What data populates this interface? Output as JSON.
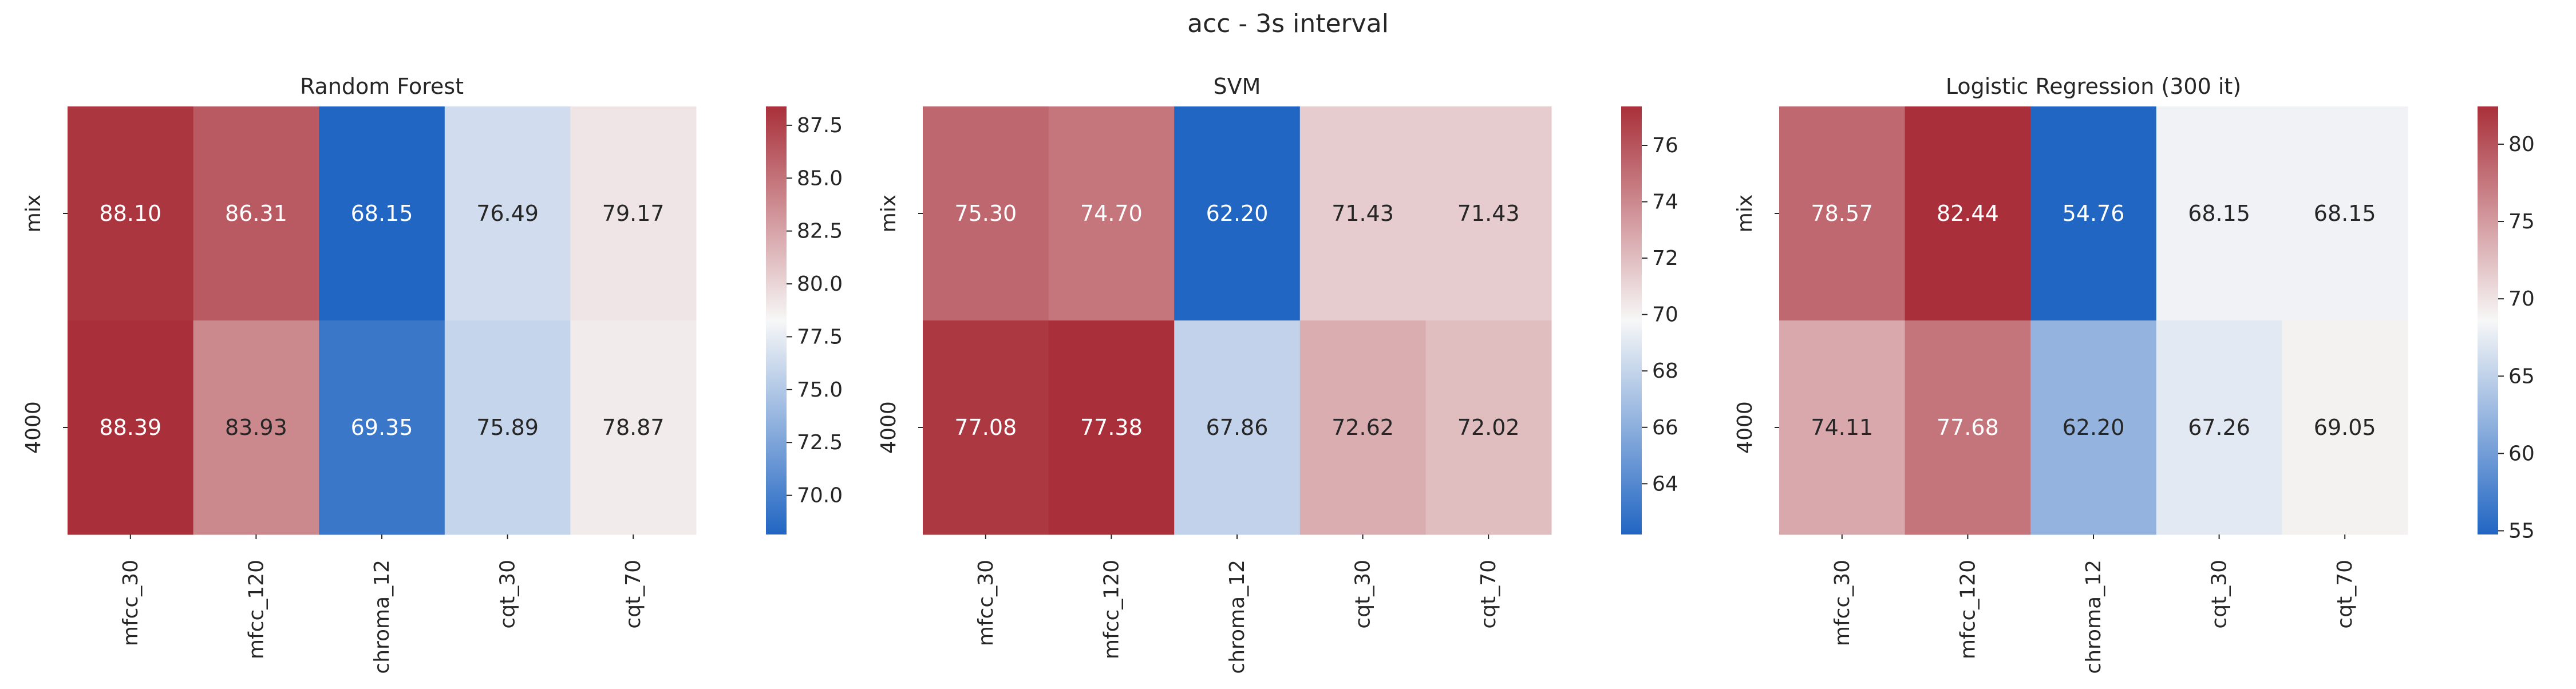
{
  "figure": {
    "title": "acc - 3s interval"
  },
  "chart_data": [
    {
      "type": "heatmap",
      "title": "Random Forest",
      "x_categories": [
        "mfcc_30",
        "mfcc_120",
        "chroma_12",
        "cqt_30",
        "cqt_70"
      ],
      "y_categories": [
        "mix",
        "4000"
      ],
      "values": [
        [
          88.1,
          86.31,
          68.15,
          76.49,
          79.17
        ],
        [
          88.39,
          83.93,
          69.35,
          75.89,
          78.87
        ]
      ],
      "value_labels": [
        [
          "88.10",
          "86.31",
          "68.15",
          "76.49",
          "79.17"
        ],
        [
          "88.39",
          "83.93",
          "69.35",
          "75.89",
          "78.87"
        ]
      ],
      "colorbar_ticks": [
        "70.0",
        "72.5",
        "75.0",
        "77.5",
        "80.0",
        "82.5",
        "85.0",
        "87.5"
      ],
      "colorbar_tick_values": [
        70.0,
        72.5,
        75.0,
        77.5,
        80.0,
        82.5,
        85.0,
        87.5
      ],
      "color_range": [
        68.15,
        88.39
      ],
      "colormap": [
        "#2166c3",
        "#f7f7f7",
        "#a9303a"
      ]
    },
    {
      "type": "heatmap",
      "title": "SVM",
      "x_categories": [
        "mfcc_30",
        "mfcc_120",
        "chroma_12",
        "cqt_30",
        "cqt_70"
      ],
      "y_categories": [
        "mix",
        "4000"
      ],
      "values": [
        [
          75.3,
          74.7,
          62.2,
          71.43,
          71.43
        ],
        [
          77.08,
          77.38,
          67.86,
          72.62,
          72.02
        ]
      ],
      "value_labels": [
        [
          "75.30",
          "74.70",
          "62.20",
          "71.43",
          "71.43"
        ],
        [
          "77.08",
          "77.38",
          "67.86",
          "72.62",
          "72.02"
        ]
      ],
      "colorbar_ticks": [
        "64",
        "66",
        "68",
        "70",
        "72",
        "74",
        "76"
      ],
      "colorbar_tick_values": [
        64,
        66,
        68,
        70,
        72,
        74,
        76
      ],
      "color_range": [
        62.2,
        77.38
      ],
      "colormap": [
        "#2166c3",
        "#f7f7f7",
        "#a9303a"
      ]
    },
    {
      "type": "heatmap",
      "title": "Logistic Regression (300 it)",
      "x_categories": [
        "mfcc_30",
        "mfcc_120",
        "chroma_12",
        "cqt_30",
        "cqt_70"
      ],
      "y_categories": [
        "mix",
        "4000"
      ],
      "values": [
        [
          78.57,
          82.44,
          54.76,
          68.15,
          68.15
        ],
        [
          74.11,
          77.68,
          62.2,
          67.26,
          69.05
        ]
      ],
      "value_labels": [
        [
          "78.57",
          "82.44",
          "54.76",
          "68.15",
          "68.15"
        ],
        [
          "74.11",
          "77.68",
          "62.20",
          "67.26",
          "69.05"
        ]
      ],
      "colorbar_ticks": [
        "55",
        "60",
        "65",
        "70",
        "75",
        "80"
      ],
      "colorbar_tick_values": [
        55,
        60,
        65,
        70,
        75,
        80
      ],
      "color_range": [
        54.76,
        82.44
      ],
      "colormap": [
        "#2166c3",
        "#f7f7f7",
        "#a9303a"
      ]
    }
  ]
}
